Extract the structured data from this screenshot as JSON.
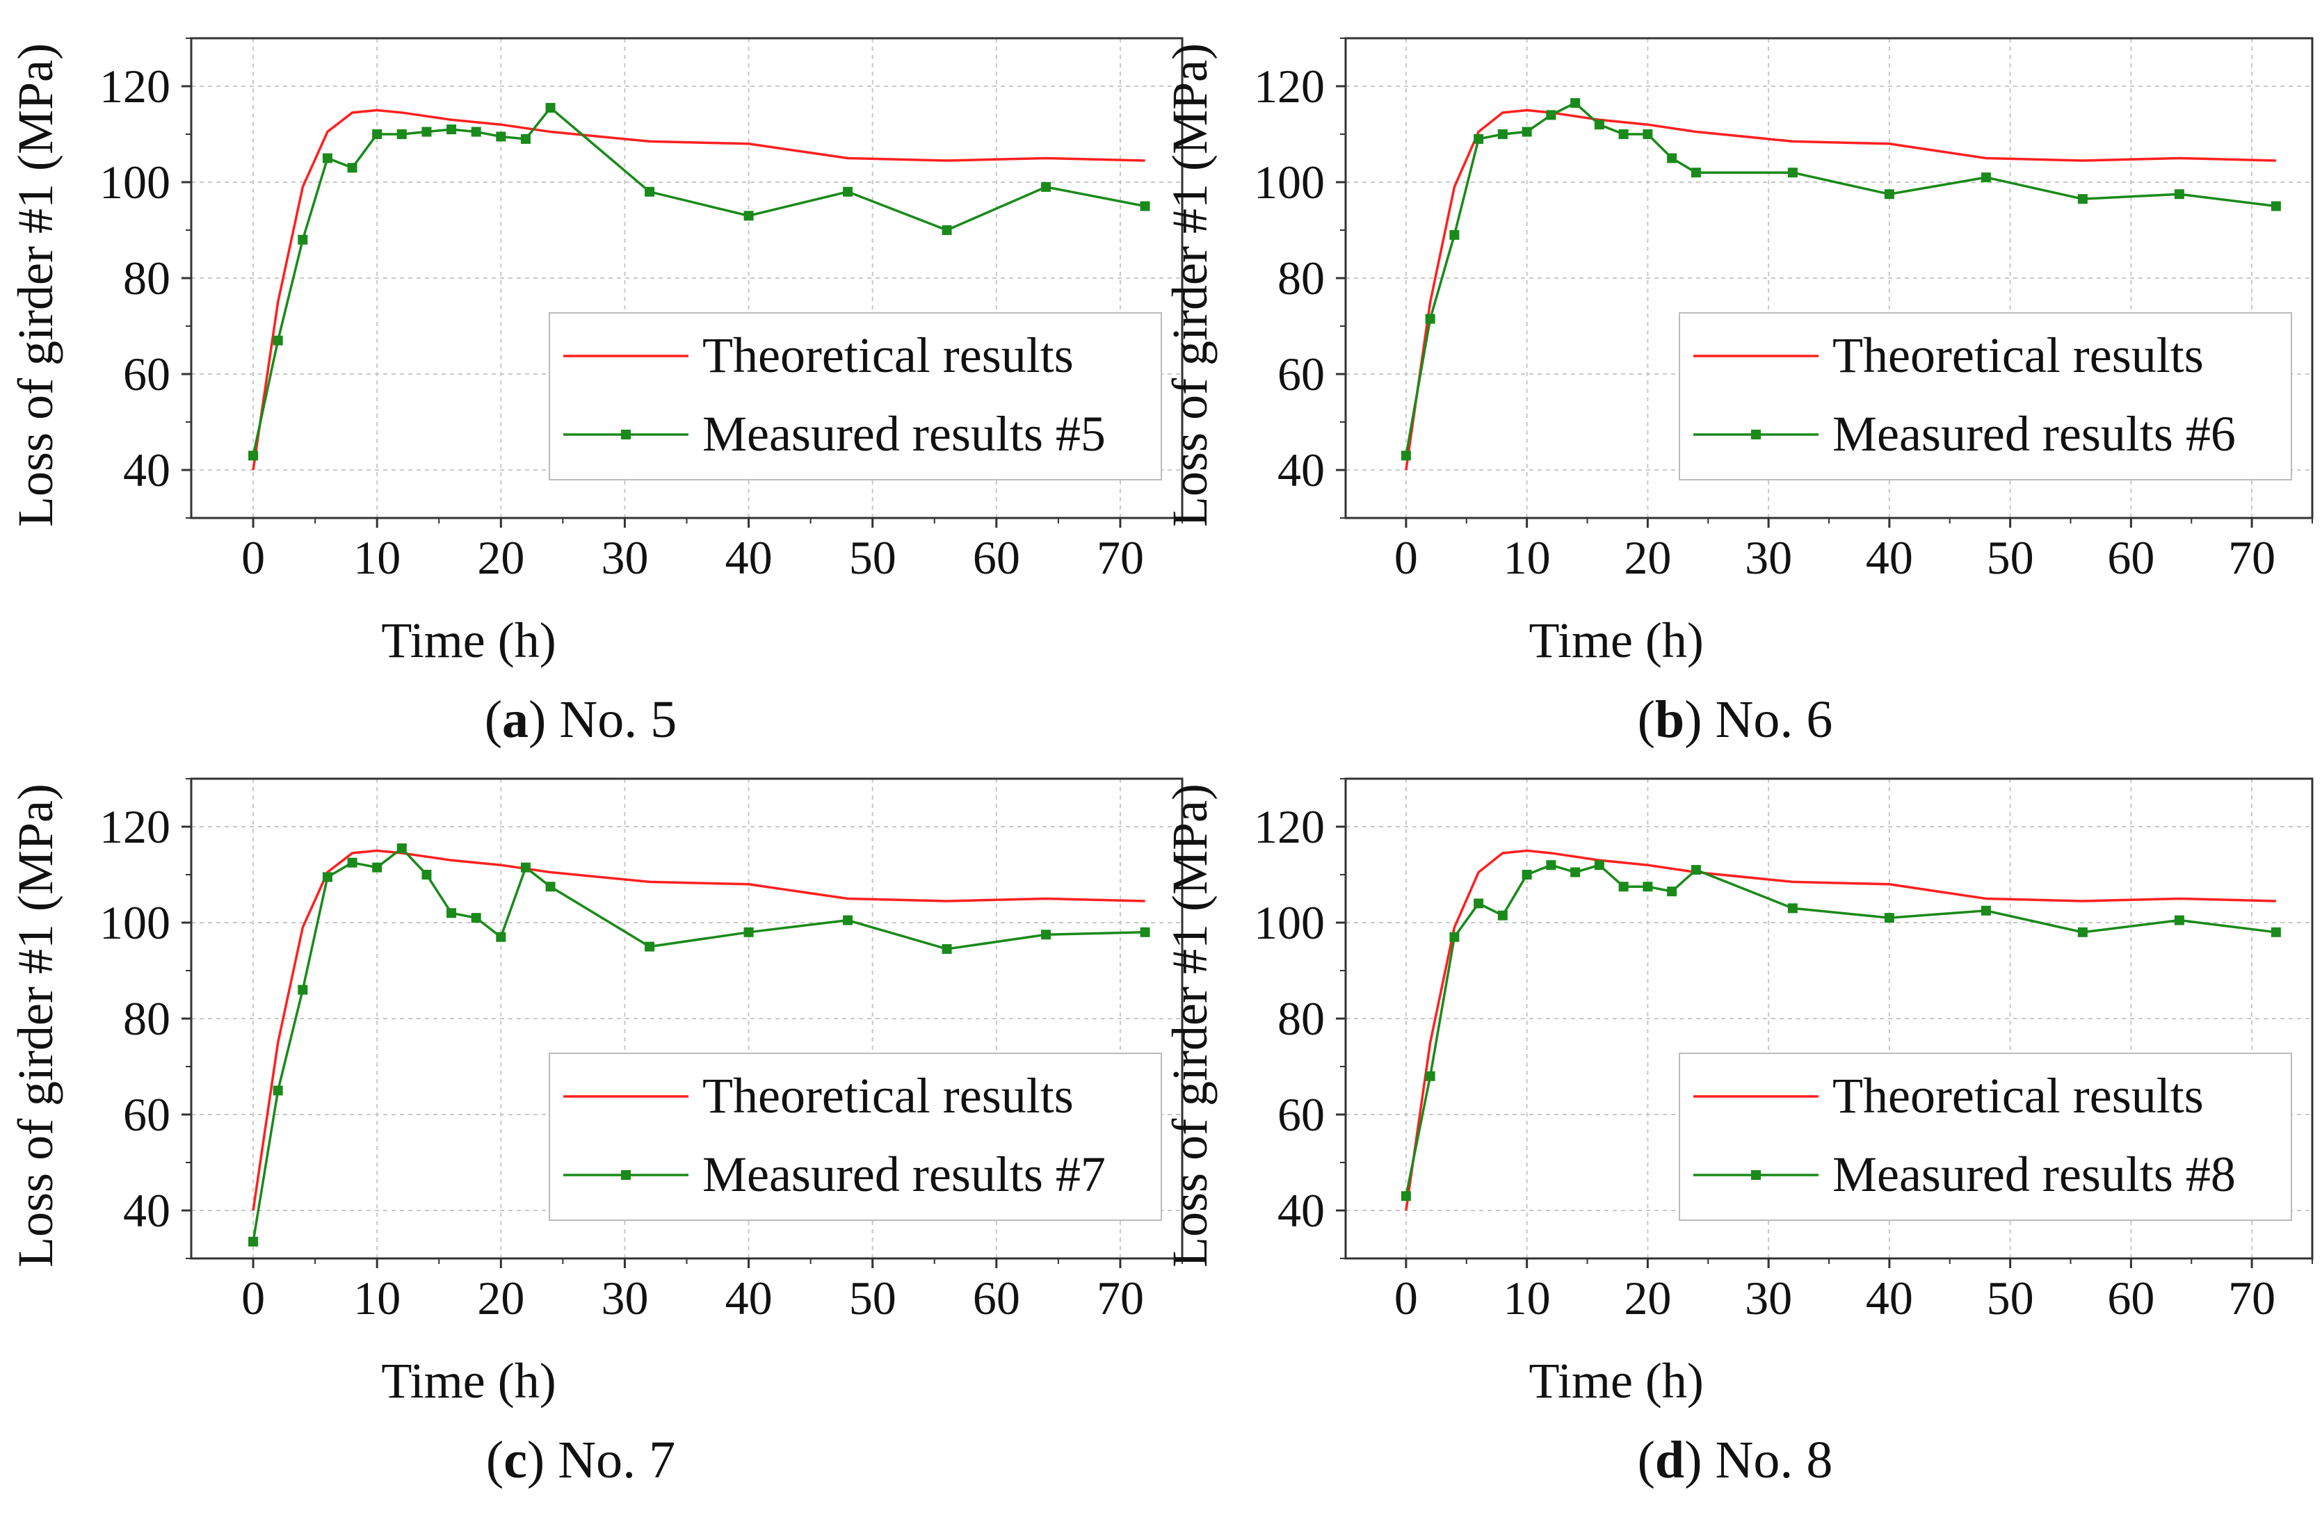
{
  "figure": {
    "panels": [
      {
        "caption_letter": "a",
        "caption_text": ") No. 5",
        "caption_open": "("
      },
      {
        "caption_letter": "b",
        "caption_text": ") No. 6",
        "caption_open": "("
      },
      {
        "caption_letter": "c",
        "caption_text": ") No. 7",
        "caption_open": "("
      },
      {
        "caption_letter": "d",
        "caption_text": ") No. 8",
        "caption_open": "("
      }
    ]
  },
  "colors": {
    "theoretical": "#ff2020",
    "measured": "#1a8a1a",
    "axis": "#333333",
    "grid": "#c8c8c8"
  },
  "chart_data": [
    {
      "type": "line",
      "title": "",
      "xlabel": "Time (h)",
      "ylabel": "Loss of girder #1 (MPa)",
      "xlim": [
        -5,
        75
      ],
      "ylim": [
        30,
        130
      ],
      "xticks": [
        0,
        10,
        20,
        30,
        40,
        50,
        60,
        70
      ],
      "yticks": [
        40,
        60,
        80,
        100,
        120
      ],
      "grid": true,
      "legend_position": "bottom-right",
      "series": [
        {
          "name": "Theoretical results",
          "x": [
            0,
            2,
            4,
            6,
            8,
            10,
            12,
            16,
            20,
            24,
            32,
            40,
            48,
            56,
            64,
            72
          ],
          "y": [
            40,
            75,
            99,
            110.5,
            114.5,
            115,
            114.5,
            113,
            112,
            110.5,
            108.5,
            108,
            105,
            104.5,
            105,
            104.5
          ]
        },
        {
          "name": "Measured results #5",
          "x": [
            0,
            2,
            4,
            6,
            8,
            10,
            12,
            14,
            16,
            18,
            20,
            22,
            24,
            32,
            40,
            48,
            56,
            64,
            72
          ],
          "y": [
            43,
            67,
            88,
            105,
            103,
            110,
            110,
            110.5,
            111,
            110.5,
            109.5,
            109,
            115.5,
            98,
            93,
            98,
            90,
            99,
            95
          ]
        }
      ]
    },
    {
      "type": "line",
      "title": "",
      "xlabel": "Time (h)",
      "ylabel": "Loss of girder #1 (MPa)",
      "xlim": [
        -5,
        75
      ],
      "ylim": [
        30,
        130
      ],
      "xticks": [
        0,
        10,
        20,
        30,
        40,
        50,
        60,
        70
      ],
      "yticks": [
        40,
        60,
        80,
        100,
        120
      ],
      "grid": true,
      "legend_position": "bottom-right",
      "series": [
        {
          "name": "Theoretical results",
          "x": [
            0,
            2,
            4,
            6,
            8,
            10,
            12,
            16,
            20,
            24,
            32,
            40,
            48,
            56,
            64,
            72
          ],
          "y": [
            40,
            75,
            99,
            110.5,
            114.5,
            115,
            114.5,
            113,
            112,
            110.5,
            108.5,
            108,
            105,
            104.5,
            105,
            104.5
          ]
        },
        {
          "name": "Measured results #6",
          "x": [
            0,
            2,
            4,
            6,
            8,
            10,
            12,
            14,
            16,
            18,
            20,
            22,
            24,
            32,
            40,
            48,
            56,
            64,
            72
          ],
          "y": [
            43,
            71.5,
            89,
            109,
            110,
            110.5,
            114,
            116.5,
            112,
            110,
            110,
            105,
            102,
            102,
            97.5,
            101,
            96.5,
            97.5,
            95
          ]
        }
      ]
    },
    {
      "type": "line",
      "title": "",
      "xlabel": "Time (h)",
      "ylabel": "Loss of girder #1 (MPa)",
      "xlim": [
        -5,
        75
      ],
      "ylim": [
        30,
        130
      ],
      "xticks": [
        0,
        10,
        20,
        30,
        40,
        50,
        60,
        70
      ],
      "yticks": [
        40,
        60,
        80,
        100,
        120
      ],
      "grid": true,
      "legend_position": "bottom-right",
      "series": [
        {
          "name": "Theoretical results",
          "x": [
            0,
            2,
            4,
            6,
            8,
            10,
            12,
            16,
            20,
            24,
            32,
            40,
            48,
            56,
            64,
            72
          ],
          "y": [
            40,
            75,
            99,
            110.5,
            114.5,
            115,
            114.5,
            113,
            112,
            110.5,
            108.5,
            108,
            105,
            104.5,
            105,
            104.5
          ]
        },
        {
          "name": "Measured results #7",
          "x": [
            0,
            2,
            4,
            6,
            8,
            10,
            12,
            14,
            16,
            18,
            20,
            22,
            24,
            32,
            40,
            48,
            56,
            64,
            72
          ],
          "y": [
            33.5,
            65,
            86,
            109.5,
            112.5,
            111.5,
            115.5,
            110,
            102,
            101,
            97,
            111.5,
            107.5,
            95,
            98,
            100.5,
            94.5,
            97.5,
            98
          ]
        }
      ]
    },
    {
      "type": "line",
      "title": "",
      "xlabel": "Time (h)",
      "ylabel": "Loss of girder #1 (MPa)",
      "xlim": [
        -5,
        75
      ],
      "ylim": [
        30,
        130
      ],
      "xticks": [
        0,
        10,
        20,
        30,
        40,
        50,
        60,
        70
      ],
      "yticks": [
        40,
        60,
        80,
        100,
        120
      ],
      "grid": true,
      "legend_position": "bottom-right",
      "series": [
        {
          "name": "Theoretical results",
          "x": [
            0,
            2,
            4,
            6,
            8,
            10,
            12,
            16,
            20,
            24,
            32,
            40,
            48,
            56,
            64,
            72
          ],
          "y": [
            40,
            75,
            99,
            110.5,
            114.5,
            115,
            114.5,
            113,
            112,
            110.5,
            108.5,
            108,
            105,
            104.5,
            105,
            104.5
          ]
        },
        {
          "name": "Measured results #8",
          "x": [
            0,
            2,
            4,
            6,
            8,
            10,
            12,
            14,
            16,
            18,
            20,
            22,
            24,
            32,
            40,
            48,
            56,
            64,
            72
          ],
          "y": [
            43,
            68,
            97,
            104,
            101.5,
            110,
            112,
            110.5,
            112,
            107.5,
            107.5,
            106.5,
            111,
            103,
            101,
            102.5,
            98,
            100.5,
            98
          ]
        }
      ]
    }
  ]
}
